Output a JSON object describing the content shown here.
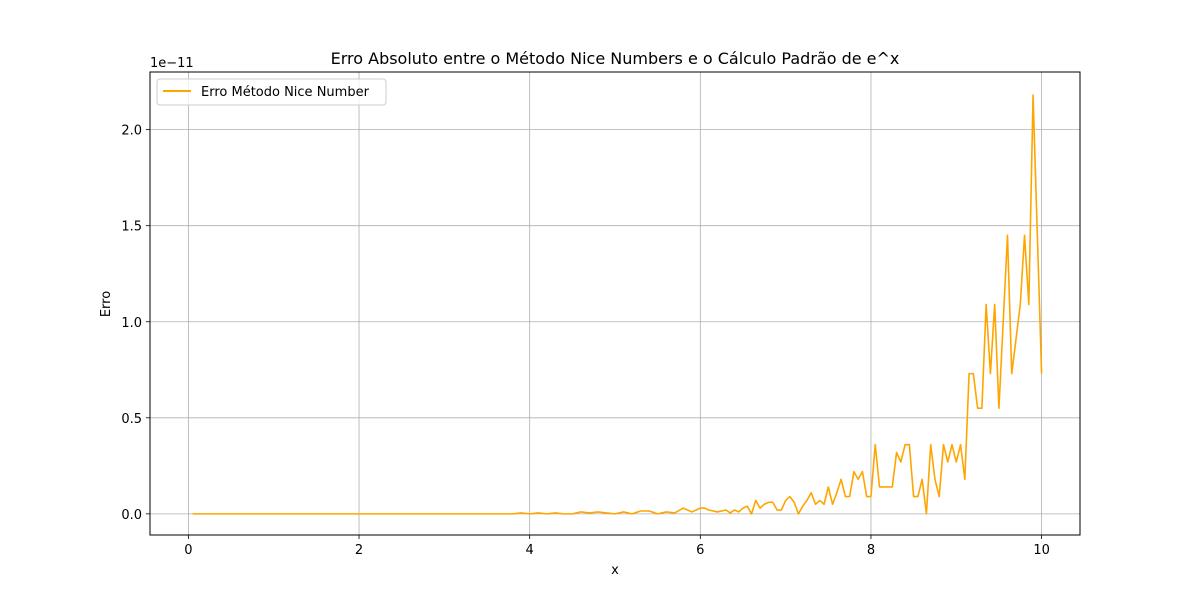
{
  "chart_data": {
    "type": "line",
    "title": "Erro Absoluto entre o Método Nice Numbers e o Cálculo Padrão de e^x",
    "xlabel": "x",
    "ylabel": "Erro",
    "offset_text": "1e−11",
    "xlim": [
      -0.45,
      10.45
    ],
    "ylim": [
      -0.11,
      2.3
    ],
    "xticks": [
      0,
      2,
      4,
      6,
      8,
      10
    ],
    "xtick_labels": [
      "0",
      "2",
      "4",
      "6",
      "8",
      "10"
    ],
    "yticks": [
      0.0,
      0.5,
      1.0,
      1.5,
      2.0
    ],
    "ytick_labels": [
      "0.0",
      "0.5",
      "1.0",
      "1.5",
      "2.0"
    ],
    "grid": true,
    "legend_position": "upper-left",
    "series": [
      {
        "name": "Erro Método Nice Number",
        "color": "#ffa500",
        "x": [
          0.05,
          0.5,
          1.0,
          1.5,
          2.0,
          2.5,
          3.0,
          3.5,
          3.8,
          3.9,
          4.0,
          4.1,
          4.2,
          4.3,
          4.4,
          4.5,
          4.6,
          4.7,
          4.8,
          4.9,
          5.0,
          5.1,
          5.2,
          5.3,
          5.4,
          5.5,
          5.6,
          5.7,
          5.8,
          5.9,
          6.0,
          6.05,
          6.1,
          6.2,
          6.3,
          6.35,
          6.4,
          6.45,
          6.5,
          6.55,
          6.6,
          6.65,
          6.7,
          6.75,
          6.8,
          6.85,
          6.9,
          6.95,
          7.0,
          7.05,
          7.1,
          7.15,
          7.2,
          7.25,
          7.3,
          7.35,
          7.4,
          7.45,
          7.5,
          7.55,
          7.6,
          7.65,
          7.7,
          7.75,
          7.8,
          7.85,
          7.9,
          7.95,
          8.0,
          8.05,
          8.1,
          8.15,
          8.2,
          8.25,
          8.3,
          8.35,
          8.4,
          8.45,
          8.5,
          8.55,
          8.6,
          8.65,
          8.7,
          8.75,
          8.8,
          8.85,
          8.9,
          8.95,
          9.0,
          9.05,
          9.1,
          9.15,
          9.2,
          9.25,
          9.3,
          9.35,
          9.4,
          9.45,
          9.5,
          9.55,
          9.6,
          9.65,
          9.7,
          9.75,
          9.8,
          9.85,
          9.9,
          9.95,
          10.0
        ],
        "y": [
          0.0,
          0.0,
          0.0,
          0.0,
          0.0,
          0.0,
          0.0,
          0.0,
          0.0,
          0.005,
          0.0,
          0.005,
          0.0,
          0.005,
          0.0,
          0.0,
          0.01,
          0.005,
          0.01,
          0.005,
          0.0,
          0.01,
          0.0,
          0.015,
          0.015,
          0.0,
          0.01,
          0.005,
          0.03,
          0.01,
          0.03,
          0.03,
          0.02,
          0.01,
          0.02,
          0.005,
          0.02,
          0.01,
          0.03,
          0.04,
          0.0,
          0.07,
          0.03,
          0.05,
          0.06,
          0.06,
          0.02,
          0.02,
          0.07,
          0.09,
          0.06,
          0.0,
          0.04,
          0.07,
          0.11,
          0.05,
          0.07,
          0.05,
          0.14,
          0.05,
          0.11,
          0.18,
          0.09,
          0.09,
          0.22,
          0.18,
          0.22,
          0.09,
          0.09,
          0.36,
          0.14,
          0.14,
          0.14,
          0.14,
          0.32,
          0.27,
          0.36,
          0.36,
          0.09,
          0.09,
          0.18,
          0.0,
          0.36,
          0.18,
          0.09,
          0.36,
          0.27,
          0.36,
          0.27,
          0.36,
          0.18,
          0.73,
          0.73,
          0.55,
          0.55,
          1.09,
          0.73,
          1.09,
          0.55,
          1.0,
          1.45,
          0.73,
          0.91,
          1.09,
          1.45,
          1.09,
          2.18,
          1.45,
          0.73
        ]
      }
    ]
  }
}
